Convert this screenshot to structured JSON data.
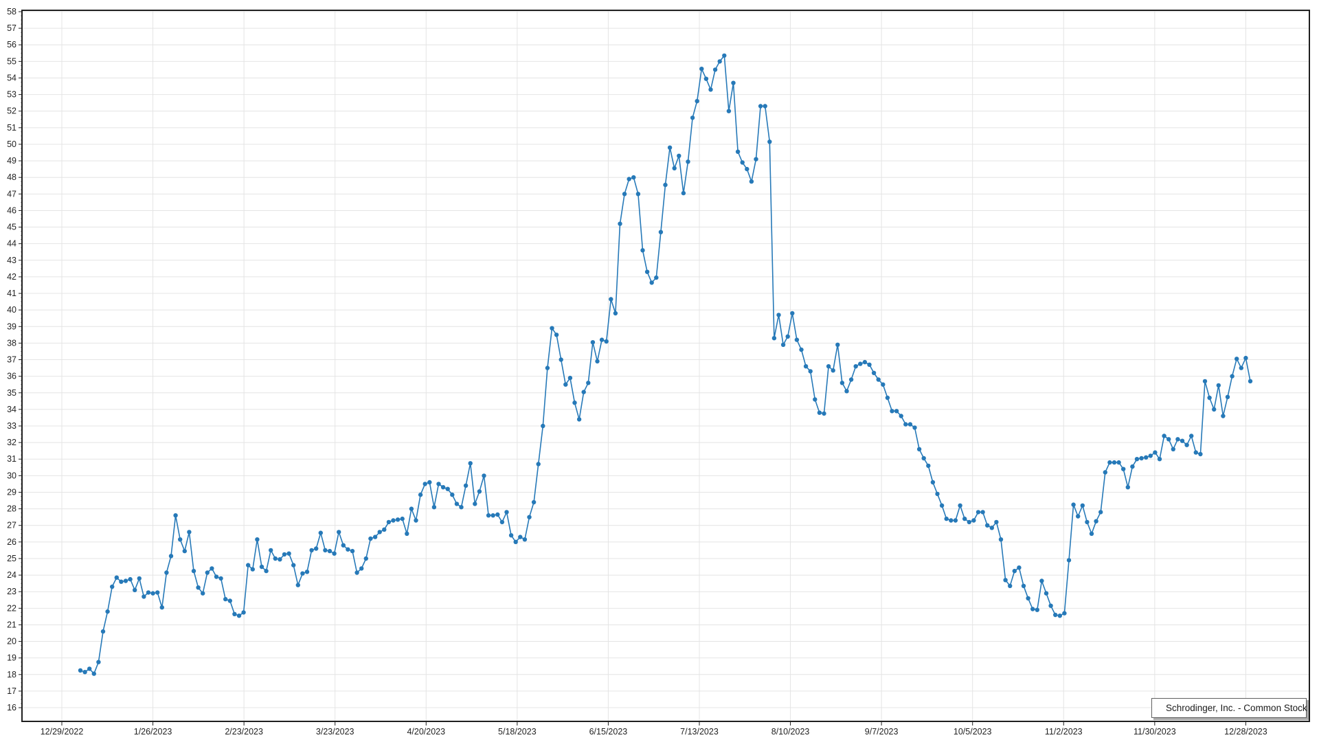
{
  "chart_data": {
    "type": "line",
    "title": "",
    "grid": true,
    "legend_position": "bottom-right-inside",
    "x_axis": {
      "label": "",
      "start": "12/29/2022",
      "end": "12/28/2023",
      "tick_labels": [
        "12/29/2022",
        "1/26/2023",
        "2/23/2023",
        "3/23/2023",
        "4/20/2023",
        "5/18/2023",
        "6/15/2023",
        "7/13/2023",
        "8/10/2023",
        "9/7/2023",
        "10/5/2023",
        "11/2/2023",
        "11/30/2023",
        "12/28/2023"
      ]
    },
    "y_axis": {
      "label": "",
      "min": 16,
      "max": 58,
      "tick_step": 1,
      "tick_labels": [
        58,
        57,
        56,
        55,
        54,
        53,
        52,
        51,
        50,
        49,
        48,
        47,
        46,
        45,
        44,
        43,
        42,
        41,
        40,
        39,
        38,
        37,
        36,
        35,
        34,
        33,
        32,
        31,
        30,
        29,
        28,
        27,
        26,
        25,
        24,
        23,
        22,
        21,
        20,
        19,
        18,
        17,
        16
      ]
    },
    "series": [
      {
        "name": "Schrodinger, Inc. - Common Stock",
        "marker": "circle",
        "frequency": "daily (trading days)",
        "color": "#2679b8",
        "values": [
          18.25,
          18.15,
          18.35,
          18.05,
          18.75,
          20.6,
          21.8,
          23.3,
          23.85,
          23.6,
          23.65,
          23.75,
          23.1,
          23.8,
          22.7,
          22.95,
          22.9,
          22.95,
          22.05,
          24.15,
          25.15,
          27.6,
          26.15,
          25.45,
          26.6,
          24.25,
          23.25,
          22.9,
          24.15,
          24.4,
          23.9,
          23.8,
          22.55,
          22.45,
          21.65,
          21.55,
          21.75,
          24.6,
          24.35,
          26.15,
          24.5,
          24.25,
          25.5,
          25.0,
          24.95,
          25.25,
          25.3,
          24.6,
          23.4,
          24.1,
          24.2,
          25.5,
          25.6,
          26.55,
          25.5,
          25.45,
          25.3,
          26.6,
          25.8,
          25.55,
          25.45,
          24.15,
          24.4,
          25.0,
          26.2,
          26.3,
          26.6,
          26.75,
          27.2,
          27.3,
          27.35,
          27.4,
          26.5,
          28.0,
          27.3,
          28.85,
          29.5,
          29.6,
          28.1,
          29.5,
          29.3,
          29.2,
          28.85,
          28.3,
          28.1,
          29.4,
          30.75,
          28.3,
          29.05,
          30.0,
          27.6,
          27.6,
          27.65,
          27.2,
          27.8,
          26.4,
          26.0,
          26.3,
          26.15,
          27.5,
          28.4,
          30.7,
          33.0,
          36.5,
          38.9,
          38.5,
          37.0,
          35.5,
          35.9,
          34.4,
          33.4,
          35.05,
          35.6,
          38.05,
          36.9,
          38.2,
          38.1,
          40.65,
          39.8,
          45.2,
          47.0,
          47.9,
          48.0,
          47.0,
          43.6,
          42.3,
          41.65,
          41.95,
          44.7,
          47.55,
          49.8,
          48.55,
          49.3,
          47.05,
          48.95,
          51.6,
          52.6,
          54.55,
          53.95,
          53.3,
          54.5,
          55.0,
          55.35,
          52.0,
          53.7,
          49.55,
          48.9,
          48.5,
          47.75,
          49.1,
          52.3,
          52.3,
          50.15,
          38.3,
          39.7,
          37.9,
          38.4,
          39.8,
          38.2,
          37.6,
          36.6,
          36.3,
          34.6,
          33.8,
          33.75,
          36.6,
          36.35,
          37.9,
          35.6,
          35.1,
          35.8,
          36.6,
          36.75,
          36.85,
          36.7,
          36.2,
          35.8,
          35.5,
          34.7,
          33.9,
          33.9,
          33.6,
          33.1,
          33.1,
          32.9,
          31.6,
          31.05,
          30.6,
          29.6,
          28.9,
          28.2,
          27.4,
          27.3,
          27.3,
          28.2,
          27.4,
          27.2,
          27.3,
          27.8,
          27.8,
          27.0,
          26.85,
          27.2,
          26.15,
          23.7,
          23.35,
          24.25,
          24.45,
          23.35,
          22.6,
          21.95,
          21.9,
          23.65,
          22.9,
          22.15,
          21.6,
          21.55,
          21.7,
          24.9,
          28.25,
          27.55,
          28.2,
          27.2,
          26.5,
          27.25,
          27.8,
          30.2,
          30.8,
          30.8,
          30.8,
          30.4,
          29.3,
          30.55,
          31.0,
          31.05,
          31.1,
          31.2,
          31.4,
          31.0,
          32.4,
          32.2,
          31.6,
          32.2,
          32.1,
          31.85,
          32.4,
          31.4,
          31.3,
          35.7,
          34.7,
          34.0,
          35.45,
          33.6,
          34.75,
          36.0,
          37.05,
          36.5,
          37.1,
          35.7
        ]
      }
    ],
    "colors": {
      "line": "#2679b8",
      "gridline": "#e4e4e4",
      "axis_border": "#1f1f1f",
      "tick_text": "#222222",
      "background": "#ffffff"
    }
  }
}
